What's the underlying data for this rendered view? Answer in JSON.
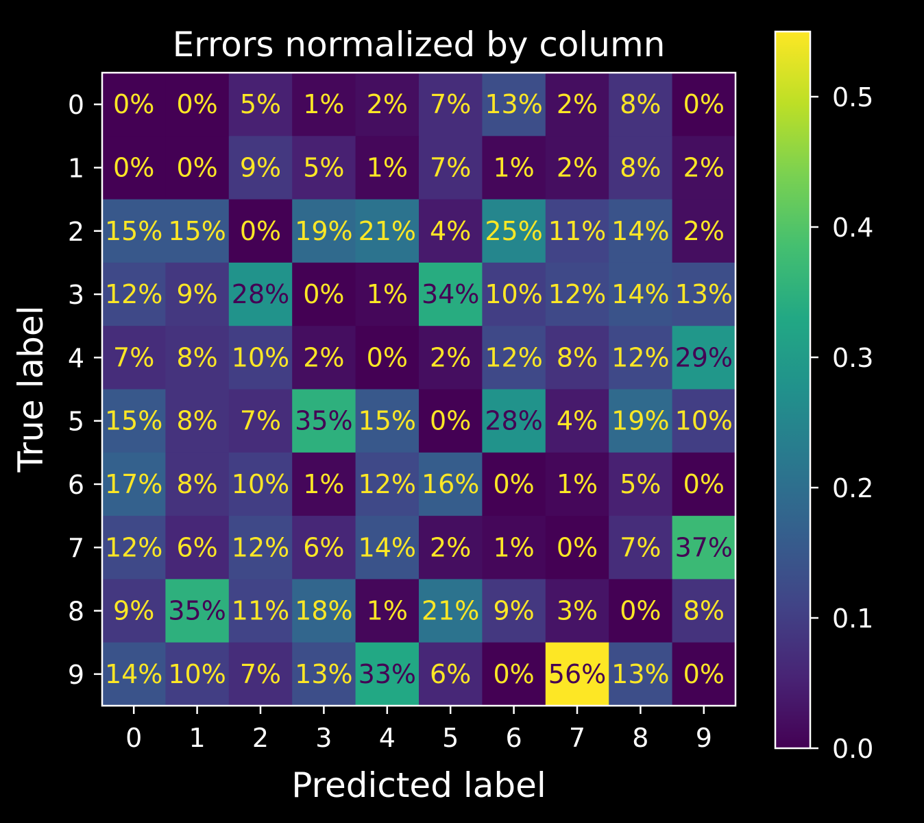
{
  "chart_data": {
    "type": "heatmap",
    "title": "Errors normalized by column",
    "xlabel": "Predicted label",
    "ylabel": "True label",
    "x_categories": [
      "0",
      "1",
      "2",
      "3",
      "4",
      "5",
      "6",
      "7",
      "8",
      "9"
    ],
    "y_categories": [
      "0",
      "1",
      "2",
      "3",
      "4",
      "5",
      "6",
      "7",
      "8",
      "9"
    ],
    "values": [
      [
        0,
        0,
        5,
        1,
        2,
        7,
        13,
        2,
        8,
        0
      ],
      [
        0,
        0,
        9,
        5,
        1,
        7,
        1,
        2,
        8,
        2
      ],
      [
        15,
        15,
        0,
        19,
        21,
        4,
        25,
        11,
        14,
        2
      ],
      [
        12,
        9,
        28,
        0,
        1,
        34,
        10,
        12,
        14,
        13
      ],
      [
        7,
        8,
        10,
        2,
        0,
        2,
        12,
        8,
        12,
        29
      ],
      [
        15,
        8,
        7,
        35,
        15,
        0,
        28,
        4,
        19,
        10
      ],
      [
        17,
        8,
        10,
        1,
        12,
        16,
        0,
        1,
        5,
        0
      ],
      [
        12,
        6,
        12,
        6,
        14,
        2,
        1,
        0,
        7,
        37
      ],
      [
        9,
        35,
        11,
        18,
        1,
        21,
        9,
        3,
        0,
        8
      ],
      [
        14,
        10,
        7,
        13,
        33,
        6,
        0,
        56,
        13,
        0
      ]
    ],
    "value_format": "percent",
    "colormap": "viridis",
    "colorbar": {
      "range": [
        0.0,
        0.55
      ],
      "ticks": [
        "0.0",
        "0.1",
        "0.2",
        "0.3",
        "0.4",
        "0.5"
      ]
    },
    "text_colors": {
      "light": "#fde725",
      "dark": "#440154"
    },
    "background": "#000000",
    "foreground": "#ffffff"
  }
}
